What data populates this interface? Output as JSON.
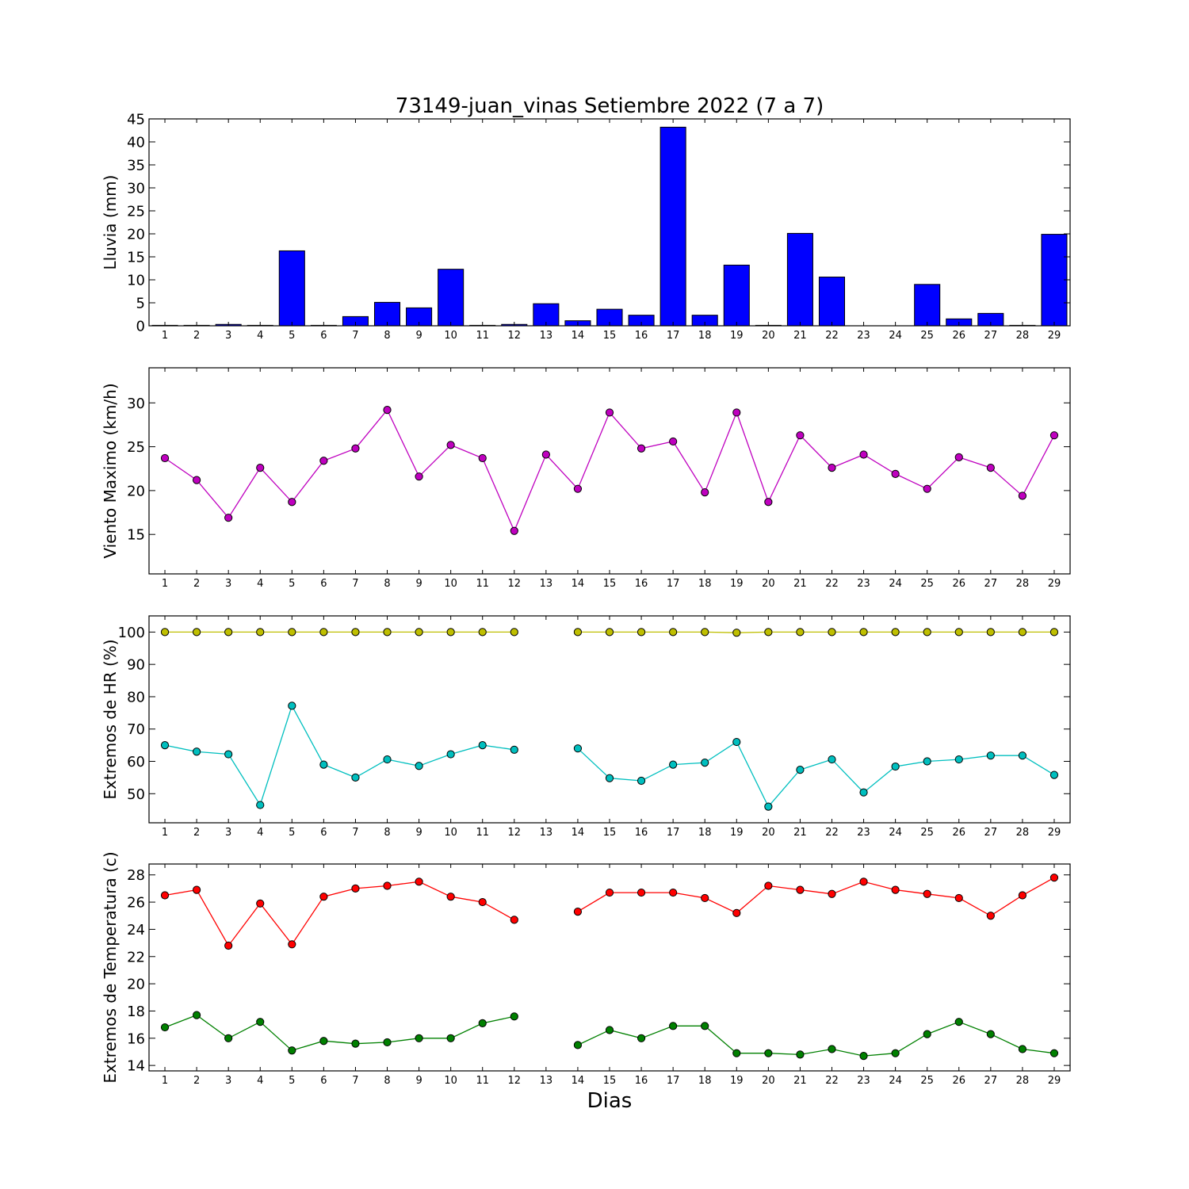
{
  "title": "73149-juan_vinas Setiembre 2022  (7 a 7)",
  "xlabel": "Dias",
  "days": [
    1,
    2,
    3,
    4,
    5,
    6,
    7,
    8,
    9,
    10,
    11,
    12,
    13,
    14,
    15,
    16,
    17,
    18,
    19,
    20,
    21,
    22,
    23,
    24,
    25,
    26,
    27,
    28,
    29
  ],
  "colors": {
    "rain": "#0000ff",
    "wind": "#bf00bf",
    "hr_max": "#bfbf00",
    "hr_min": "#00bfbf",
    "temp_max": "#ff0000",
    "temp_min": "#008000"
  },
  "chart_data": [
    {
      "type": "bar",
      "ylabel": "Lluvia (mm)",
      "ylim": [
        0,
        45
      ],
      "yticks": [
        0,
        5,
        10,
        15,
        20,
        25,
        30,
        35,
        40,
        45
      ],
      "categories": [
        1,
        2,
        3,
        4,
        5,
        6,
        7,
        8,
        9,
        10,
        11,
        12,
        13,
        14,
        15,
        16,
        17,
        18,
        19,
        20,
        21,
        22,
        23,
        24,
        25,
        26,
        27,
        28,
        29
      ],
      "values": [
        0.1,
        0.1,
        0.3,
        0.1,
        16.3,
        0.1,
        2.0,
        5.1,
        3.9,
        12.3,
        0.1,
        0.3,
        4.8,
        1.1,
        3.6,
        2.3,
        43.2,
        2.3,
        13.2,
        0.1,
        20.1,
        10.6,
        0,
        0,
        9.0,
        1.5,
        2.7,
        0.1,
        19.9
      ]
    },
    {
      "type": "line",
      "ylabel": "Viento Maximo (km/h)",
      "ylim": [
        10.5,
        34
      ],
      "yticks": [
        15,
        20,
        25,
        30
      ],
      "x": [
        1,
        2,
        3,
        4,
        5,
        6,
        7,
        8,
        9,
        10,
        11,
        12,
        13,
        14,
        15,
        16,
        17,
        18,
        19,
        20,
        21,
        22,
        23,
        24,
        25,
        26,
        27,
        28,
        29
      ],
      "series": [
        {
          "color_key": "wind",
          "values": [
            23.7,
            21.2,
            16.9,
            22.6,
            18.7,
            23.4,
            24.8,
            29.2,
            21.6,
            25.2,
            23.7,
            15.4,
            24.1,
            20.2,
            28.9,
            24.8,
            25.6,
            19.8,
            28.9,
            18.7,
            26.3,
            22.6,
            24.1,
            21.9,
            20.2,
            23.8,
            22.6,
            19.4,
            26.3
          ]
        }
      ]
    },
    {
      "type": "line",
      "ylabel": "Extremos de HR (%)",
      "ylim": [
        41,
        105
      ],
      "yticks": [
        50,
        60,
        70,
        80,
        90,
        100
      ],
      "x": [
        1,
        2,
        3,
        4,
        5,
        6,
        7,
        8,
        9,
        10,
        11,
        12,
        13,
        14,
        15,
        16,
        17,
        18,
        19,
        20,
        21,
        22,
        23,
        24,
        25,
        26,
        27,
        28,
        29
      ],
      "series": [
        {
          "color_key": "hr_max",
          "values": [
            100,
            100,
            100,
            100,
            100,
            100,
            100,
            100,
            100,
            100,
            100,
            100,
            null,
            100,
            100,
            100,
            100,
            100,
            99.8,
            100,
            100,
            100,
            100,
            100,
            100,
            100,
            100,
            100,
            100
          ]
        },
        {
          "color_key": "hr_min",
          "values": [
            65,
            63,
            62.2,
            46.5,
            77.2,
            59,
            55,
            60.6,
            58.6,
            62.2,
            65,
            63.6,
            null,
            64,
            54.8,
            54,
            59,
            59.6,
            66,
            46,
            57.4,
            60.6,
            50.4,
            58.4,
            60,
            60.6,
            61.8,
            61.8,
            55.8
          ]
        }
      ]
    },
    {
      "type": "line",
      "ylabel": "Extremos de Temperatura (c)",
      "ylim": [
        13.6,
        28.8
      ],
      "yticks": [
        14,
        16,
        18,
        20,
        22,
        24,
        26,
        28
      ],
      "x": [
        1,
        2,
        3,
        4,
        5,
        6,
        7,
        8,
        9,
        10,
        11,
        12,
        13,
        14,
        15,
        16,
        17,
        18,
        19,
        20,
        21,
        22,
        23,
        24,
        25,
        26,
        27,
        28,
        29
      ],
      "series": [
        {
          "color_key": "temp_max",
          "values": [
            26.5,
            26.9,
            22.8,
            25.9,
            22.9,
            26.4,
            27.0,
            27.2,
            27.5,
            26.4,
            26.0,
            24.7,
            null,
            25.3,
            26.7,
            26.7,
            26.7,
            26.3,
            25.2,
            27.2,
            26.9,
            26.6,
            27.5,
            26.9,
            26.6,
            26.3,
            25.0,
            26.5,
            27.8
          ]
        },
        {
          "color_key": "temp_min",
          "values": [
            16.8,
            17.7,
            16.0,
            17.2,
            15.1,
            15.8,
            15.6,
            15.7,
            16.0,
            16.0,
            17.1,
            17.6,
            null,
            15.5,
            16.6,
            16.0,
            16.9,
            16.9,
            14.9,
            14.9,
            14.8,
            15.2,
            14.7,
            14.9,
            16.3,
            17.2,
            16.3,
            15.2,
            14.9
          ]
        }
      ]
    }
  ]
}
